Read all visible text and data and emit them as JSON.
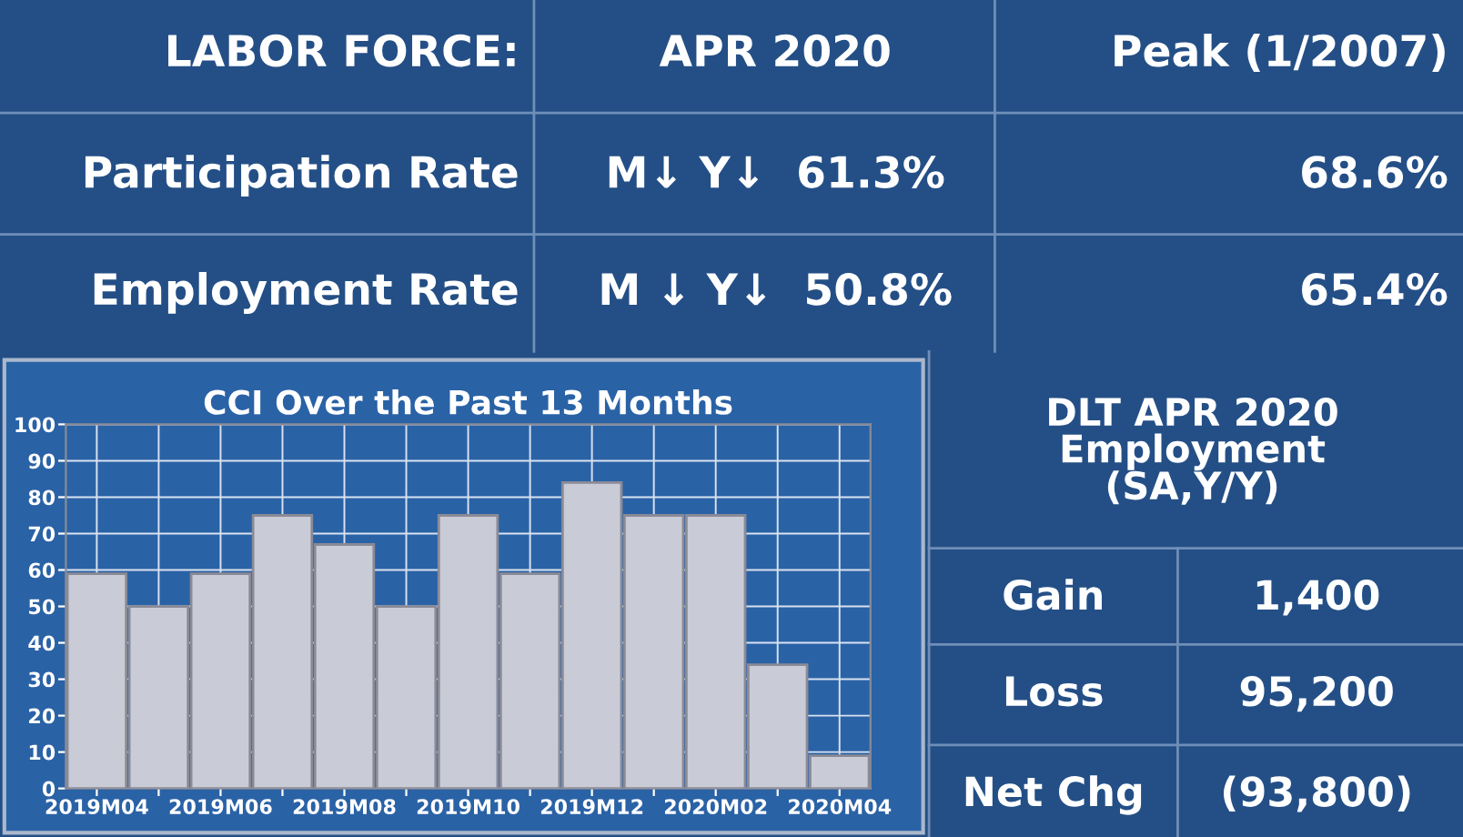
{
  "chart_data": [
    {
      "type": "other",
      "annotations": [
        "LABOR FORCE:",
        "APR 2020",
        "Peak (1/2007)",
        "Participation Rate",
        "M↓ Y↓  61.3%",
        "68.6%",
        "Employment Rate",
        "M ↓ Y↓  50.8%",
        "65.4%"
      ]
    },
    {
      "type": "bar",
      "title": "CCI Over the Past 13 Months",
      "categories": [
        "2019M04",
        null,
        "2019M06",
        null,
        "2019M08",
        null,
        "2019M10",
        null,
        "2019M12",
        null,
        "2020M02",
        null,
        "2020M04"
      ],
      "values": [
        59,
        50,
        59,
        75,
        67,
        50,
        75,
        59,
        84,
        75,
        75,
        34,
        9
      ],
      "color": "#c9ccd6",
      "ylim": [
        0,
        100
      ],
      "yticks": [
        0,
        10,
        20,
        30,
        40,
        50,
        60,
        70,
        80,
        90,
        100
      ],
      "grid": true
    },
    {
      "type": "other",
      "title": "DLT APR 2020\nEmployment\n(SA,Y/Y)",
      "annotations": [
        "Gain",
        "1,400",
        "Loss",
        "95,200",
        "Net Chg",
        "(93,800)"
      ]
    }
  ]
}
